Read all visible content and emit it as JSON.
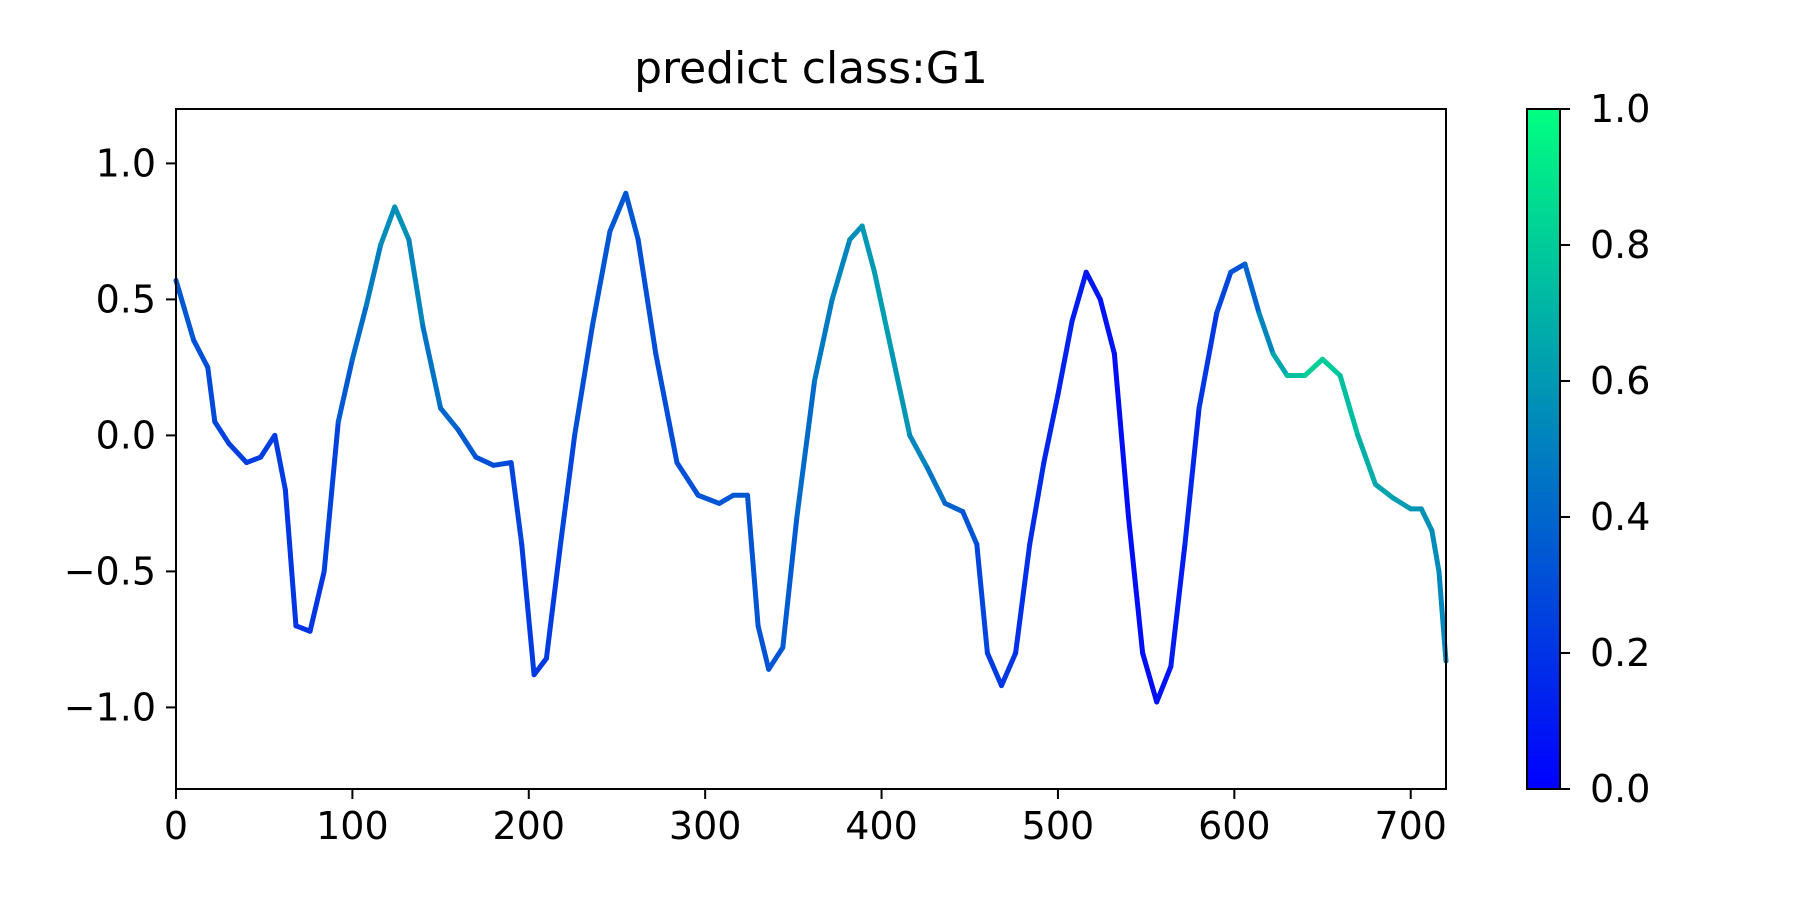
{
  "chart_data": {
    "type": "line",
    "title": "predict class:G1",
    "xlabel": "",
    "ylabel": "",
    "xlim": [
      0,
      720
    ],
    "ylim": [
      -1.3,
      1.2
    ],
    "x_ticks": [
      0,
      100,
      200,
      300,
      400,
      500,
      600,
      700
    ],
    "y_ticks": [
      1.0,
      0.5,
      0.0,
      -0.5,
      -1.0
    ],
    "x_tick_labels": [
      "0",
      "100",
      "200",
      "300",
      "400",
      "500",
      "600",
      "700"
    ],
    "y_tick_labels": [
      "1.0",
      "0.5",
      "0.0",
      "−0.5",
      "−1.0"
    ],
    "grid": false,
    "colormap": "winter",
    "colormap_colors": [
      "#0000ff",
      "#00ff80"
    ],
    "colorbar": {
      "range": [
        0.0,
        1.0
      ],
      "ticks": [
        0.0,
        0.2,
        0.4,
        0.6,
        0.8,
        1.0
      ],
      "tick_labels": [
        "0.0",
        "0.2",
        "0.4",
        "0.6",
        "0.8",
        "1.0"
      ]
    },
    "points": [
      {
        "x": 0,
        "y": 0.57,
        "c": 0.35
      },
      {
        "x": 10,
        "y": 0.35,
        "c": 0.33
      },
      {
        "x": 18,
        "y": 0.25,
        "c": 0.3
      },
      {
        "x": 22,
        "y": 0.05,
        "c": 0.28
      },
      {
        "x": 30,
        "y": -0.03,
        "c": 0.25
      },
      {
        "x": 40,
        "y": -0.1,
        "c": 0.24
      },
      {
        "x": 48,
        "y": -0.08,
        "c": 0.24
      },
      {
        "x": 56,
        "y": 0.0,
        "c": 0.25
      },
      {
        "x": 62,
        "y": -0.2,
        "c": 0.22
      },
      {
        "x": 68,
        "y": -0.7,
        "c": 0.2
      },
      {
        "x": 76,
        "y": -0.72,
        "c": 0.2
      },
      {
        "x": 84,
        "y": -0.5,
        "c": 0.22
      },
      {
        "x": 92,
        "y": 0.05,
        "c": 0.3
      },
      {
        "x": 100,
        "y": 0.28,
        "c": 0.4
      },
      {
        "x": 108,
        "y": 0.48,
        "c": 0.45
      },
      {
        "x": 116,
        "y": 0.7,
        "c": 0.52
      },
      {
        "x": 124,
        "y": 0.84,
        "c": 0.58
      },
      {
        "x": 132,
        "y": 0.72,
        "c": 0.56
      },
      {
        "x": 140,
        "y": 0.4,
        "c": 0.48
      },
      {
        "x": 150,
        "y": 0.1,
        "c": 0.42
      },
      {
        "x": 160,
        "y": 0.02,
        "c": 0.38
      },
      {
        "x": 170,
        "y": -0.08,
        "c": 0.33
      },
      {
        "x": 180,
        "y": -0.11,
        "c": 0.3
      },
      {
        "x": 190,
        "y": -0.1,
        "c": 0.28
      },
      {
        "x": 196,
        "y": -0.4,
        "c": 0.25
      },
      {
        "x": 203,
        "y": -0.88,
        "c": 0.22
      },
      {
        "x": 210,
        "y": -0.82,
        "c": 0.22
      },
      {
        "x": 218,
        "y": -0.4,
        "c": 0.25
      },
      {
        "x": 226,
        "y": 0.0,
        "c": 0.3
      },
      {
        "x": 236,
        "y": 0.4,
        "c": 0.33
      },
      {
        "x": 246,
        "y": 0.75,
        "c": 0.34
      },
      {
        "x": 255,
        "y": 0.89,
        "c": 0.35
      },
      {
        "x": 262,
        "y": 0.72,
        "c": 0.33
      },
      {
        "x": 272,
        "y": 0.3,
        "c": 0.3
      },
      {
        "x": 284,
        "y": -0.1,
        "c": 0.3
      },
      {
        "x": 296,
        "y": -0.22,
        "c": 0.32
      },
      {
        "x": 308,
        "y": -0.25,
        "c": 0.34
      },
      {
        "x": 316,
        "y": -0.22,
        "c": 0.34
      },
      {
        "x": 324,
        "y": -0.22,
        "c": 0.34
      },
      {
        "x": 330,
        "y": -0.7,
        "c": 0.33
      },
      {
        "x": 336,
        "y": -0.86,
        "c": 0.33
      },
      {
        "x": 344,
        "y": -0.78,
        "c": 0.33
      },
      {
        "x": 352,
        "y": -0.3,
        "c": 0.38
      },
      {
        "x": 362,
        "y": 0.2,
        "c": 0.45
      },
      {
        "x": 372,
        "y": 0.5,
        "c": 0.5
      },
      {
        "x": 382,
        "y": 0.72,
        "c": 0.55
      },
      {
        "x": 389,
        "y": 0.77,
        "c": 0.58
      },
      {
        "x": 396,
        "y": 0.6,
        "c": 0.62
      },
      {
        "x": 406,
        "y": 0.3,
        "c": 0.62
      },
      {
        "x": 416,
        "y": 0.0,
        "c": 0.56
      },
      {
        "x": 426,
        "y": -0.12,
        "c": 0.5
      },
      {
        "x": 436,
        "y": -0.25,
        "c": 0.42
      },
      {
        "x": 446,
        "y": -0.28,
        "c": 0.36
      },
      {
        "x": 454,
        "y": -0.4,
        "c": 0.3
      },
      {
        "x": 460,
        "y": -0.8,
        "c": 0.24
      },
      {
        "x": 468,
        "y": -0.92,
        "c": 0.22
      },
      {
        "x": 476,
        "y": -0.8,
        "c": 0.2
      },
      {
        "x": 484,
        "y": -0.4,
        "c": 0.18
      },
      {
        "x": 492,
        "y": -0.1,
        "c": 0.16
      },
      {
        "x": 500,
        "y": 0.15,
        "c": 0.14
      },
      {
        "x": 508,
        "y": 0.42,
        "c": 0.12
      },
      {
        "x": 516,
        "y": 0.6,
        "c": 0.1
      },
      {
        "x": 524,
        "y": 0.5,
        "c": 0.08
      },
      {
        "x": 532,
        "y": 0.3,
        "c": 0.06
      },
      {
        "x": 540,
        "y": -0.3,
        "c": 0.05
      },
      {
        "x": 548,
        "y": -0.8,
        "c": 0.05
      },
      {
        "x": 556,
        "y": -0.98,
        "c": 0.06
      },
      {
        "x": 564,
        "y": -0.85,
        "c": 0.08
      },
      {
        "x": 572,
        "y": -0.4,
        "c": 0.12
      },
      {
        "x": 580,
        "y": 0.1,
        "c": 0.18
      },
      {
        "x": 590,
        "y": 0.45,
        "c": 0.25
      },
      {
        "x": 598,
        "y": 0.6,
        "c": 0.3
      },
      {
        "x": 606,
        "y": 0.63,
        "c": 0.34
      },
      {
        "x": 614,
        "y": 0.45,
        "c": 0.45
      },
      {
        "x": 622,
        "y": 0.3,
        "c": 0.6
      },
      {
        "x": 630,
        "y": 0.22,
        "c": 0.72
      },
      {
        "x": 640,
        "y": 0.22,
        "c": 0.8
      },
      {
        "x": 650,
        "y": 0.28,
        "c": 0.82
      },
      {
        "x": 660,
        "y": 0.22,
        "c": 0.78
      },
      {
        "x": 670,
        "y": 0.0,
        "c": 0.72
      },
      {
        "x": 680,
        "y": -0.18,
        "c": 0.66
      },
      {
        "x": 690,
        "y": -0.23,
        "c": 0.62
      },
      {
        "x": 700,
        "y": -0.27,
        "c": 0.6
      },
      {
        "x": 706,
        "y": -0.27,
        "c": 0.58
      },
      {
        "x": 712,
        "y": -0.35,
        "c": 0.56
      },
      {
        "x": 716,
        "y": -0.5,
        "c": 0.54
      },
      {
        "x": 720,
        "y": -0.83,
        "c": 0.52
      }
    ]
  }
}
